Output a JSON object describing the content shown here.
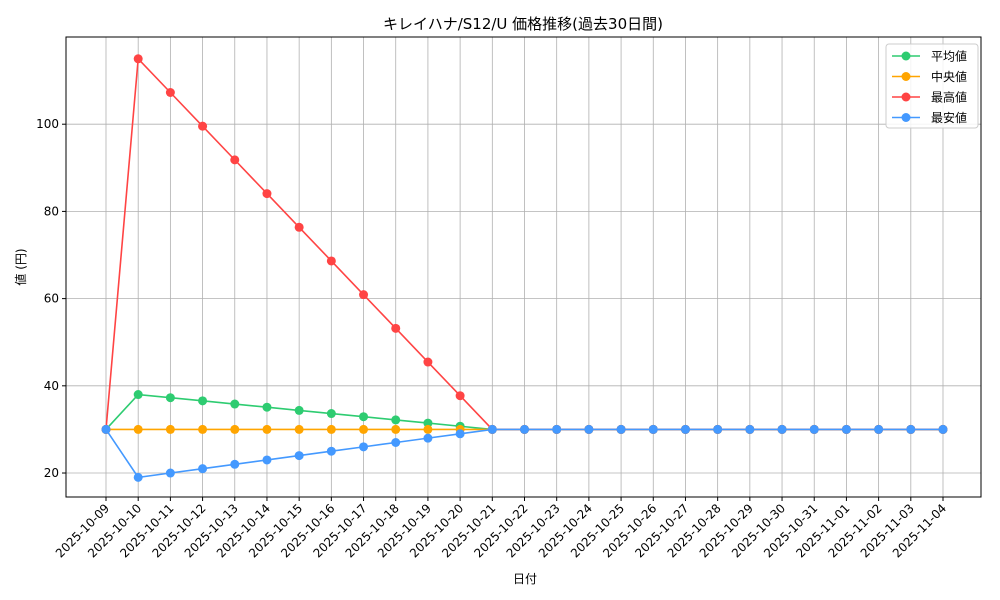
{
  "chart_data": {
    "type": "line",
    "title": "キレイハナ/S12/U 価格推移(過去30日間)",
    "xlabel": "日付",
    "ylabel": "値 (円)",
    "ylim": [
      14.5,
      120
    ],
    "yticks": [
      20,
      40,
      60,
      80,
      100
    ],
    "grid": true,
    "legend_position": "top-right",
    "x": [
      "2025-10-09",
      "2025-10-10",
      "2025-10-11",
      "2025-10-12",
      "2025-10-13",
      "2025-10-14",
      "2025-10-15",
      "2025-10-16",
      "2025-10-17",
      "2025-10-18",
      "2025-10-19",
      "2025-10-20",
      "2025-10-21",
      "2025-10-22",
      "2025-10-23",
      "2025-10-24",
      "2025-10-25",
      "2025-10-26",
      "2025-10-27",
      "2025-10-28",
      "2025-10-29",
      "2025-10-30",
      "2025-10-31",
      "2025-11-01",
      "2025-11-02",
      "2025-11-03",
      "2025-11-04"
    ],
    "series": [
      {
        "name": "平均値",
        "color": "#2ecc71",
        "values": [
          30,
          38,
          37.27,
          36.55,
          35.82,
          35.09,
          34.36,
          33.64,
          32.91,
          32.18,
          31.45,
          30.73,
          30,
          30,
          30,
          30,
          30,
          30,
          30,
          30,
          30,
          30,
          30,
          30,
          30,
          30,
          30
        ]
      },
      {
        "name": "中央値",
        "color": "#ffa500",
        "values": [
          30,
          30,
          30,
          30,
          30,
          30,
          30,
          30,
          30,
          30,
          30,
          30,
          30,
          30,
          30,
          30,
          30,
          30,
          30,
          30,
          30,
          30,
          30,
          30,
          30,
          30,
          30
        ]
      },
      {
        "name": "最高値",
        "color": "#ff4444",
        "values": [
          30,
          115,
          107.27,
          99.55,
          91.82,
          84.09,
          76.36,
          68.64,
          60.91,
          53.18,
          45.45,
          37.73,
          30,
          30,
          30,
          30,
          30,
          30,
          30,
          30,
          30,
          30,
          30,
          30,
          30,
          30,
          30
        ]
      },
      {
        "name": "最安値",
        "color": "#4499ff",
        "values": [
          30,
          19,
          20,
          21,
          22,
          23,
          24,
          25,
          26,
          27,
          28,
          29,
          30,
          30,
          30,
          30,
          30,
          30,
          30,
          30,
          30,
          30,
          30,
          30,
          30,
          30,
          30
        ]
      }
    ]
  }
}
